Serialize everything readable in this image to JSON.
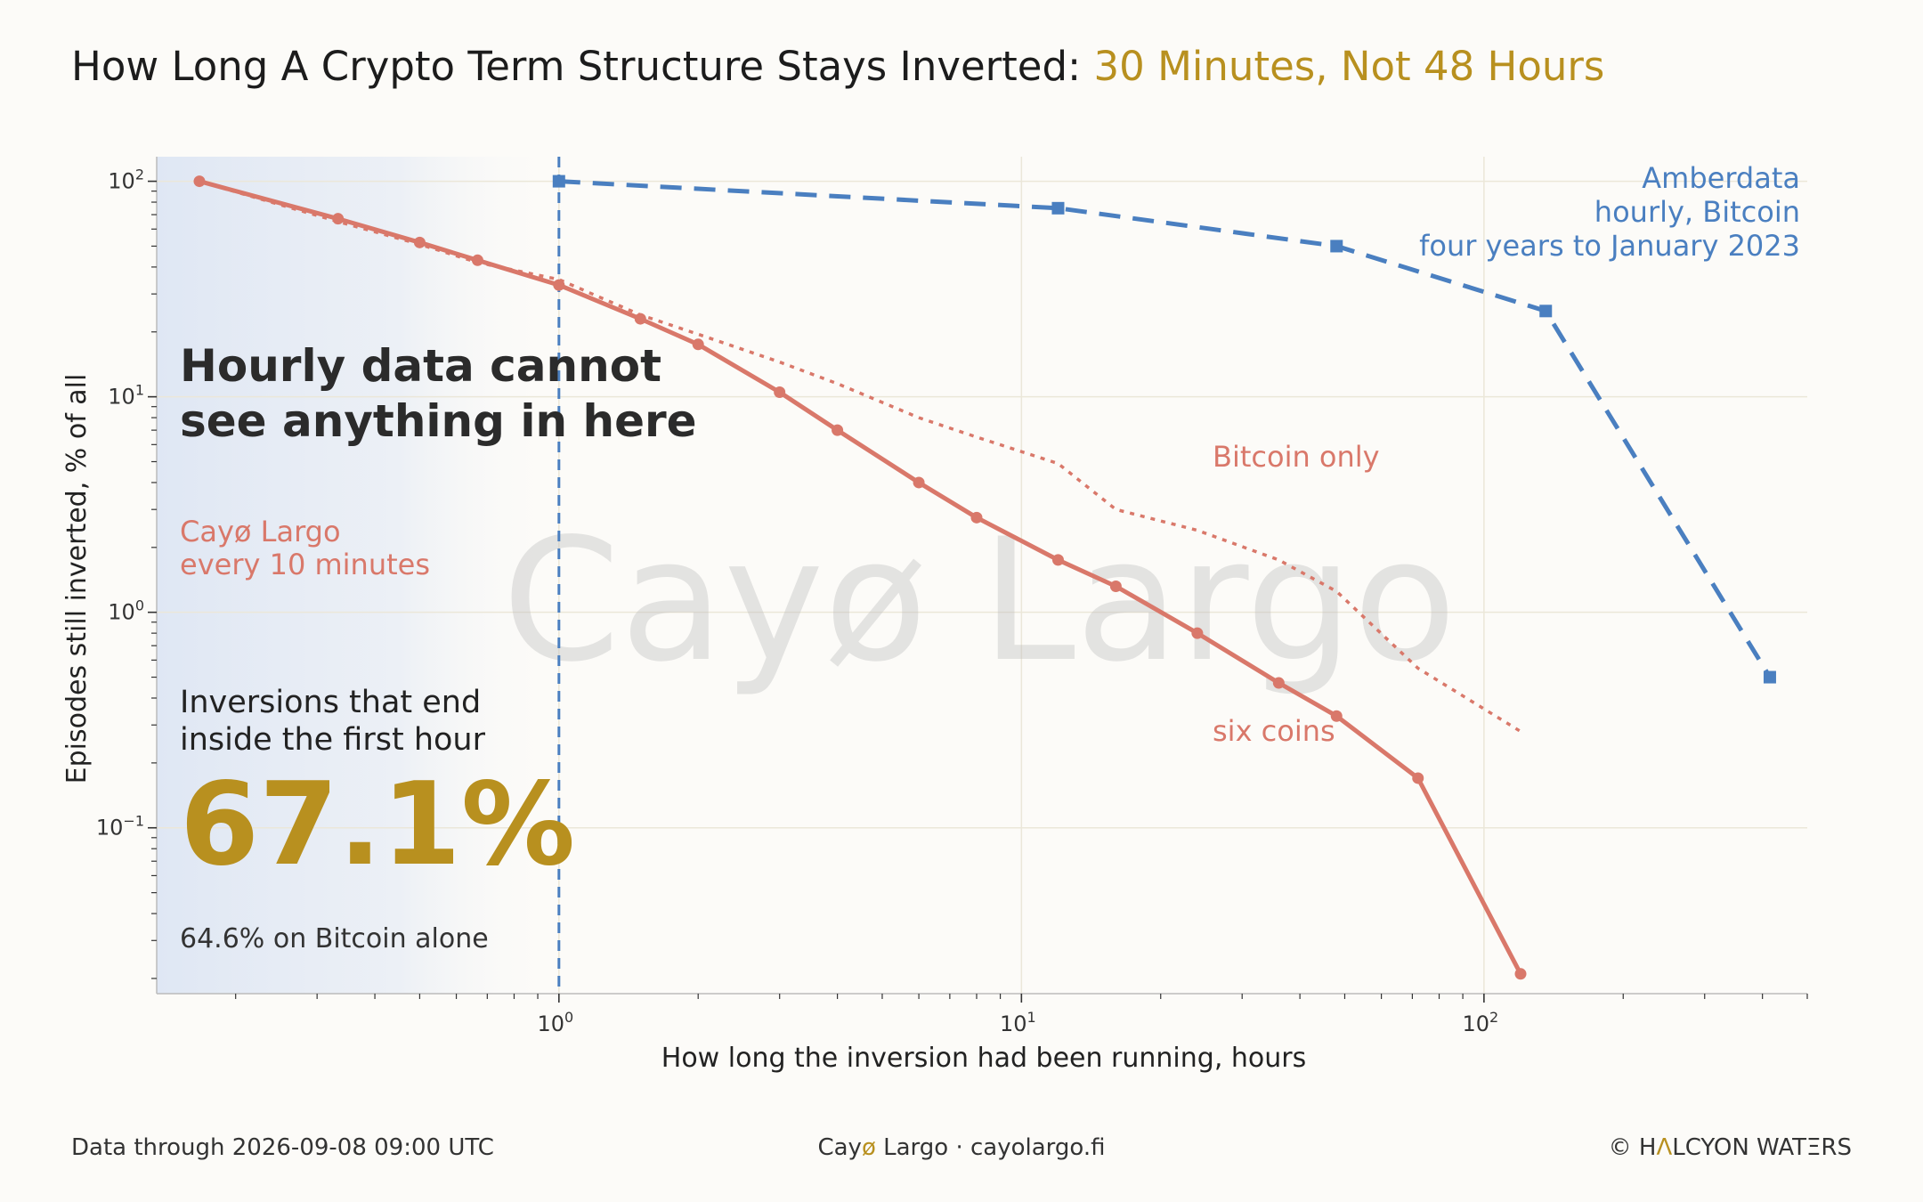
{
  "title": {
    "main": "How Long A Crypto Term Structure Stays Inverted: ",
    "accent": "30 Minutes, Not 48 Hours"
  },
  "colors": {
    "accent": "#b8901f",
    "cayo": "#d9786a",
    "amberdata": "#4a7fc0",
    "shade": "#dde6f3"
  },
  "chart_data": {
    "type": "line",
    "x_scale": "log",
    "y_scale": "log",
    "xlim": [
      0.135,
      500
    ],
    "ylim": [
      0.017,
      130
    ],
    "xlabel": "How long the inversion had been running, hours",
    "ylabel": "Episodes still inverted, % of all",
    "x_ticks": [
      {
        "base": "10",
        "exp": "0"
      },
      {
        "base": "10",
        "exp": "1"
      },
      {
        "base": "10",
        "exp": "2"
      }
    ],
    "y_ticks": [
      {
        "base": "10",
        "exp": "2"
      },
      {
        "base": "10",
        "exp": "1"
      },
      {
        "base": "10",
        "exp": "0"
      },
      {
        "base": "10",
        "exp": "−1"
      }
    ],
    "grid": true,
    "shaded_region": {
      "from": 0.135,
      "to": 1.0
    },
    "vline_x": 1.0,
    "series": [
      {
        "key": "six",
        "name": "six coins",
        "style": "solid-circles",
        "x": [
          0.167,
          0.333,
          0.5,
          0.667,
          1.0,
          1.5,
          2,
          3,
          4,
          6,
          8,
          12,
          16,
          24,
          36,
          48,
          72,
          120
        ],
        "y": [
          100,
          67,
          52,
          43,
          33,
          23,
          17.5,
          10.5,
          7.0,
          4.0,
          2.75,
          1.75,
          1.32,
          0.8,
          0.47,
          0.33,
          0.17,
          0.021
        ]
      },
      {
        "key": "btc",
        "name": "Bitcoin only",
        "style": "dotted",
        "x": [
          0.167,
          0.333,
          0.5,
          0.667,
          1.0,
          1.5,
          2,
          3,
          4,
          6,
          8,
          12,
          16,
          24,
          36,
          48,
          72,
          120
        ],
        "y": [
          100,
          65,
          51,
          42,
          35,
          24,
          19.5,
          14.5,
          11.5,
          8.0,
          6.5,
          4.9,
          3.0,
          2.4,
          1.75,
          1.25,
          0.55,
          0.28
        ]
      },
      {
        "key": "amber",
        "name": "Amberdata\nhourly, Bitcoin\nfour years to January 2023",
        "style": "dashed-squares",
        "x": [
          1,
          12,
          48,
          136,
          415
        ],
        "y": [
          100,
          75,
          50,
          25,
          0.5
        ]
      }
    ]
  },
  "labels": {
    "callout_line1": "Hourly data cannot",
    "callout_line2": "see anything in here",
    "cayo_line1": "Cayø Largo",
    "cayo_line2": "every 10 minutes",
    "bitcoin_only": "Bitcoin only",
    "six_coins": "six coins",
    "amber_line1": "Amberdata",
    "amber_line2": "hourly, Bitcoin",
    "amber_line3": "four years to January 2023",
    "note_line1": "Inversions that end",
    "note_line2": "inside the first hour",
    "big_value": "67.1%",
    "sub_value": "64.6% on Bitcoin alone"
  },
  "watermark": "Cayø Largo",
  "footer": {
    "left": "Data through 2026-09-08 09:00 UTC",
    "center_brand": "Cay",
    "center_o": "ø",
    "center_rest": " Largo  ·  cayolargo.fi",
    "right_copy": "© H",
    "right_a": "Λ",
    "right_rest": "LCYON WATΞRS"
  }
}
